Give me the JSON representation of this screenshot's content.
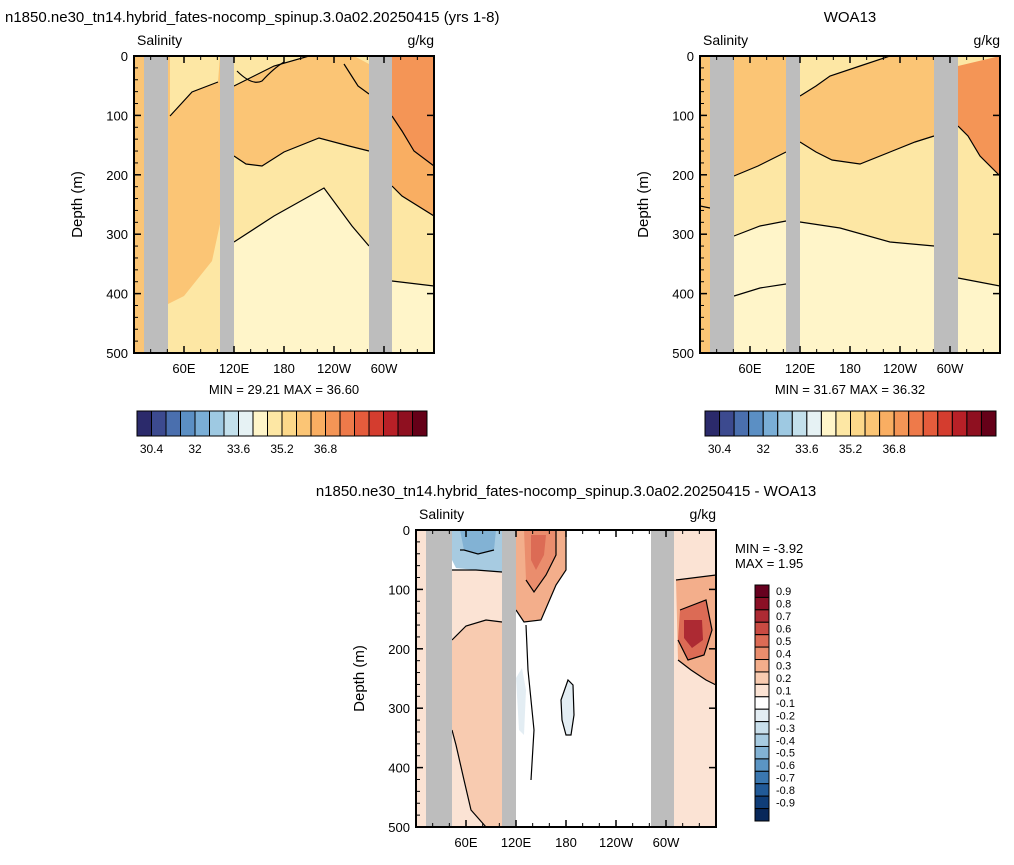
{
  "chart_data": [
    {
      "type": "heatmap",
      "title": "n1850.ne30_tn14.hybrid_fates-nocomp_spinup.3.0a02.20250415 (yrs 1-8)",
      "left_label": "Salinity",
      "right_label": "g/kg",
      "ylabel": "Depth (m)",
      "ylim": [
        500,
        0
      ],
      "y_ticks": [
        "0",
        "100",
        "200",
        "300",
        "400",
        "500"
      ],
      "x_ticks": [
        "60E",
        "120E",
        "180",
        "120W",
        "60W"
      ],
      "min_label": "MIN =",
      "min_value": "29.21",
      "max_label": "MAX =",
      "max_value": "36.60",
      "colorbar": {
        "orientation": "horizontal",
        "labels": [
          "30.4",
          "32",
          "33.6",
          "35.2",
          "36.8"
        ],
        "colors": [
          "#2b2a6b",
          "#3c4a8f",
          "#4a6fae",
          "#5b8fc4",
          "#7aaed6",
          "#9ec9e2",
          "#c3e0ec",
          "#e6f2f4",
          "#fff5c9",
          "#fde7a4",
          "#fcd88a",
          "#fbc575",
          "#f9ae62",
          "#f49556",
          "#ee7a4a",
          "#e55c3c",
          "#d43d2f",
          "#b82027",
          "#8f1020",
          "#650018"
        ]
      }
    },
    {
      "type": "heatmap",
      "title": "WOA13",
      "left_label": "Salinity",
      "right_label": "g/kg",
      "ylabel": "Depth (m)",
      "ylim": [
        500,
        0
      ],
      "y_ticks": [
        "0",
        "100",
        "200",
        "300",
        "400",
        "500"
      ],
      "x_ticks": [
        "60E",
        "120E",
        "180",
        "120W",
        "60W"
      ],
      "min_label": "MIN =",
      "min_value": "31.67",
      "max_label": "MAX =",
      "max_value": "36.32",
      "colorbar": {
        "orientation": "horizontal",
        "labels": [
          "30.4",
          "32",
          "33.6",
          "35.2",
          "36.8"
        ],
        "colors": [
          "#2b2a6b",
          "#3c4a8f",
          "#4a6fae",
          "#5b8fc4",
          "#7aaed6",
          "#9ec9e2",
          "#c3e0ec",
          "#e6f2f4",
          "#fff5c9",
          "#fde7a4",
          "#fcd88a",
          "#fbc575",
          "#f9ae62",
          "#f49556",
          "#ee7a4a",
          "#e55c3c",
          "#d43d2f",
          "#b82027",
          "#8f1020",
          "#650018"
        ]
      }
    },
    {
      "type": "heatmap",
      "title": "n1850.ne30_tn14.hybrid_fates-nocomp_spinup.3.0a02.20250415 - WOA13",
      "left_label": "Salinity",
      "right_label": "g/kg",
      "ylabel": "Depth (m)",
      "ylim": [
        500,
        0
      ],
      "y_ticks": [
        "0",
        "100",
        "200",
        "300",
        "400",
        "500"
      ],
      "x_ticks": [
        "60E",
        "120E",
        "180",
        "120W",
        "60W"
      ],
      "min_label": "MIN =",
      "min_value": "-3.92",
      "max_label": "MAX =",
      "max_value": "1.95",
      "colorbar": {
        "orientation": "vertical",
        "labels": [
          "0.9",
          "0.8",
          "0.7",
          "0.6",
          "0.5",
          "0.4",
          "0.3",
          "0.2",
          "0.1",
          "-0.1",
          "-0.2",
          "-0.3",
          "-0.4",
          "-0.5",
          "-0.6",
          "-0.7",
          "-0.8",
          "-0.9"
        ],
        "colors": [
          "#67001f",
          "#8b1026",
          "#ad2a33",
          "#c94a42",
          "#dc6b55",
          "#ea8d6d",
          "#f3ae8b",
          "#f8cbb0",
          "#fbe3d4",
          "#ffffff",
          "#e3edf3",
          "#c9dfeb",
          "#a7cbe1",
          "#82b2d4",
          "#5b95c4",
          "#3a77b0",
          "#215a98",
          "#0f3d78",
          "#08285a"
        ]
      }
    }
  ]
}
